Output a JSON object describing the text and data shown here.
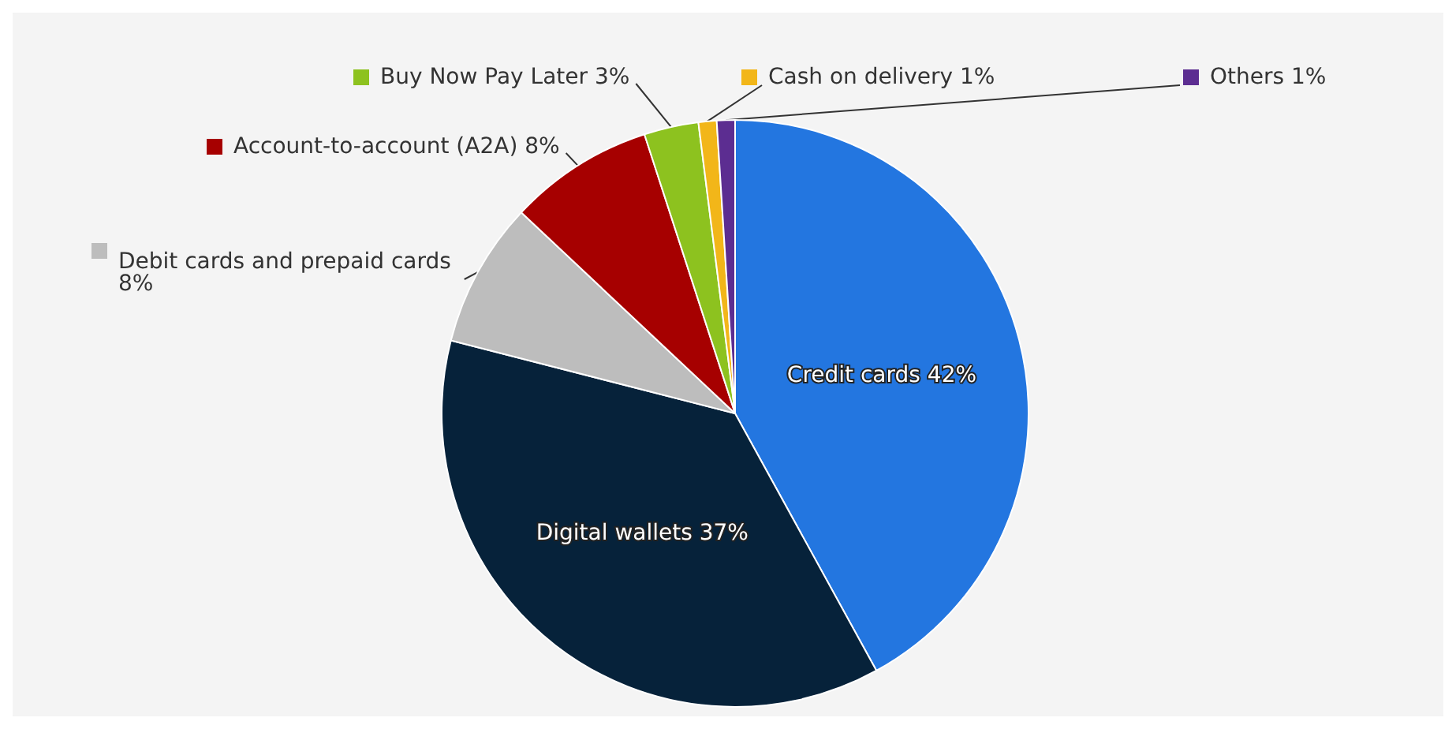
{
  "chart_data": {
    "type": "pie",
    "categories": [
      "Credit cards",
      "Digital wallets",
      "Debit cards and prepaid cards",
      "Account-to-account (A2A)",
      "Buy Now Pay Later",
      "Cash on delivery",
      "Others"
    ],
    "values": [
      42,
      37,
      8,
      8,
      3,
      1,
      1
    ],
    "colors": [
      "#2376e0",
      "#06223a",
      "#bdbdbd",
      "#a60000",
      "#8dc21f",
      "#f2b619",
      "#5c2d91"
    ],
    "value_labels": [
      "42%",
      "37%",
      "8%",
      "8%",
      "3%",
      "1%",
      "1%"
    ],
    "legend": "top"
  }
}
